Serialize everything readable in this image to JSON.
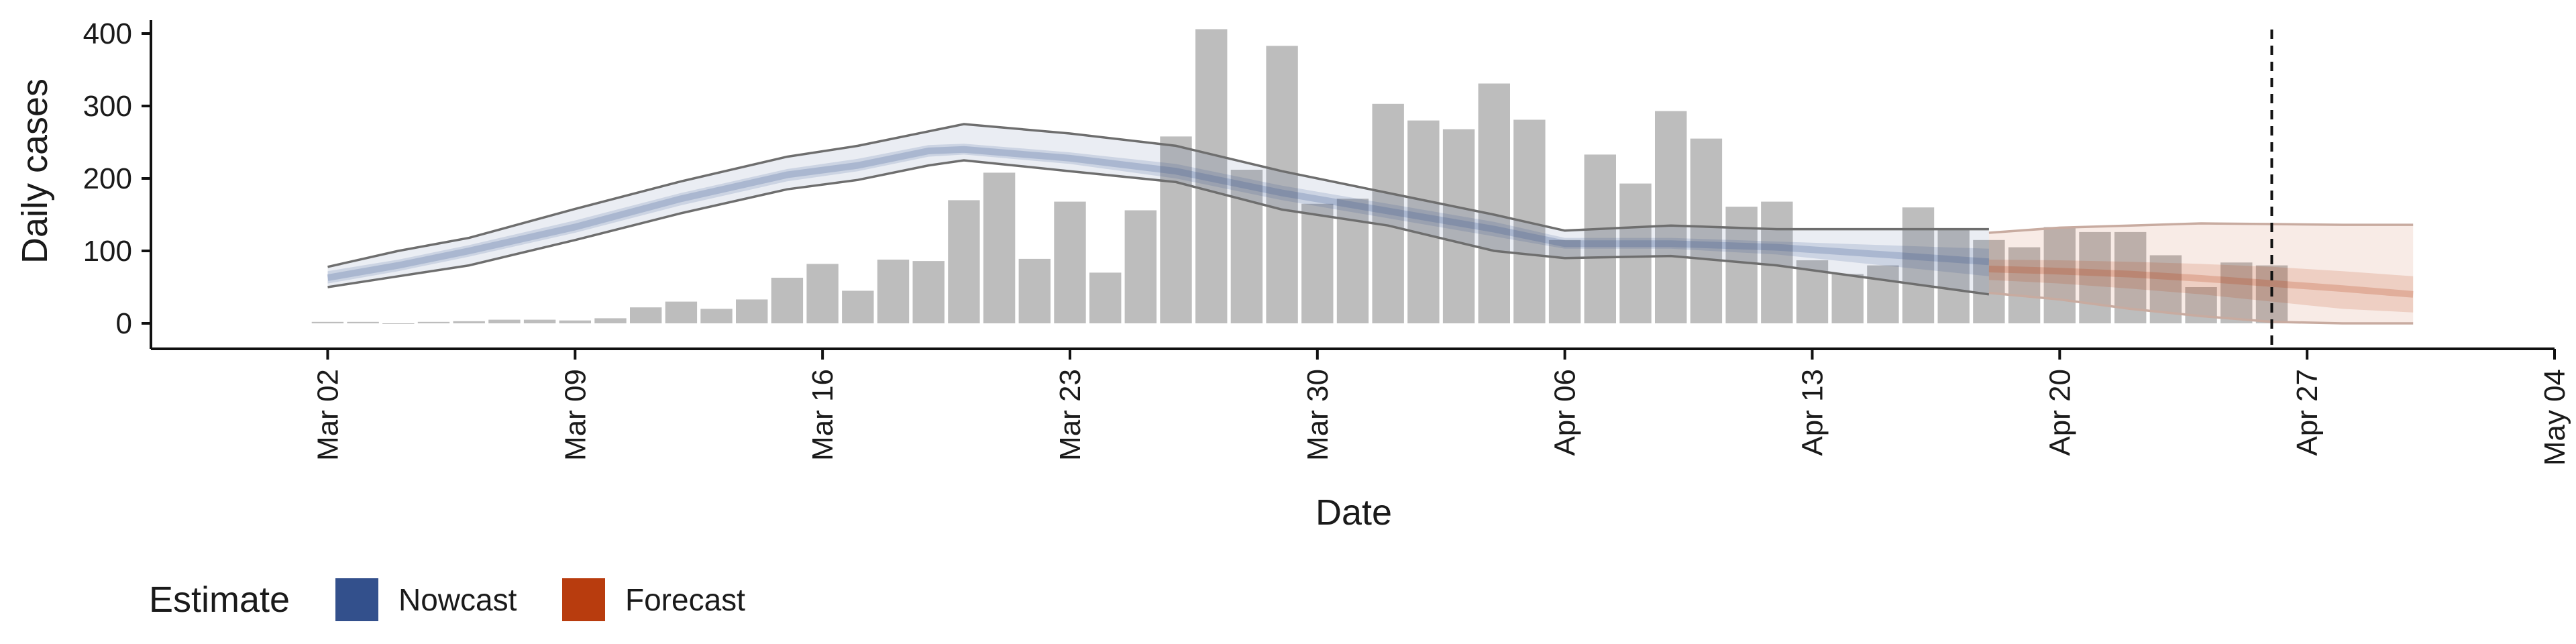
{
  "chart_data": {
    "type": "bar",
    "xlabel": "Date",
    "ylabel": "Daily cases",
    "ylim": [
      0,
      420
    ],
    "y_ticks": [
      0,
      100,
      200,
      300,
      400
    ],
    "x_range": [
      "2020-02-26",
      "2020-05-04"
    ],
    "x_ticks": [
      {
        "date": "2020-03-02",
        "label": "Mar 02"
      },
      {
        "date": "2020-03-09",
        "label": "Mar 09"
      },
      {
        "date": "2020-03-16",
        "label": "Mar 16"
      },
      {
        "date": "2020-03-23",
        "label": "Mar 23"
      },
      {
        "date": "2020-03-30",
        "label": "Mar 30"
      },
      {
        "date": "2020-04-06",
        "label": "Apr 06"
      },
      {
        "date": "2020-04-13",
        "label": "Apr 13"
      },
      {
        "date": "2020-04-20",
        "label": "Apr 20"
      },
      {
        "date": "2020-04-27",
        "label": "Apr 27"
      },
      {
        "date": "2020-05-04",
        "label": "May 04"
      }
    ],
    "grid": false,
    "reference_line_date": "2020-04-26",
    "bars": {
      "color": "#bdbdbd",
      "dates": [
        "2020-03-02",
        "2020-03-03",
        "2020-03-04",
        "2020-03-05",
        "2020-03-06",
        "2020-03-07",
        "2020-03-08",
        "2020-03-09",
        "2020-03-10",
        "2020-03-11",
        "2020-03-12",
        "2020-03-13",
        "2020-03-14",
        "2020-03-15",
        "2020-03-16",
        "2020-03-17",
        "2020-03-18",
        "2020-03-19",
        "2020-03-20",
        "2020-03-21",
        "2020-03-22",
        "2020-03-23",
        "2020-03-24",
        "2020-03-25",
        "2020-03-26",
        "2020-03-27",
        "2020-03-28",
        "2020-03-29",
        "2020-03-30",
        "2020-03-31",
        "2020-04-01",
        "2020-04-02",
        "2020-04-03",
        "2020-04-04",
        "2020-04-05",
        "2020-04-06",
        "2020-04-07",
        "2020-04-08",
        "2020-04-09",
        "2020-04-10",
        "2020-04-11",
        "2020-04-12",
        "2020-04-13",
        "2020-04-14",
        "2020-04-15",
        "2020-04-16",
        "2020-04-17",
        "2020-04-18",
        "2020-04-19",
        "2020-04-20",
        "2020-04-21",
        "2020-04-22",
        "2020-04-23",
        "2020-04-24",
        "2020-04-25",
        "2020-04-26"
      ],
      "values": [
        2,
        2,
        0,
        2,
        3,
        5,
        5,
        4,
        7,
        22,
        30,
        20,
        33,
        63,
        82,
        45,
        88,
        86,
        170,
        208,
        89,
        168,
        70,
        156,
        258,
        406,
        212,
        383,
        165,
        172,
        303,
        280,
        268,
        331,
        281,
        115,
        233,
        193,
        293,
        255,
        161,
        168,
        87,
        68,
        80,
        160,
        130,
        115,
        105,
        133,
        126,
        126,
        94,
        50,
        84,
        80
      ]
    },
    "series": [
      {
        "name": "Nowcast",
        "color": "#33508c",
        "dates": [
          "2020-03-02",
          "2020-03-04",
          "2020-03-06",
          "2020-03-09",
          "2020-03-12",
          "2020-03-15",
          "2020-03-17",
          "2020-03-19",
          "2020-03-20",
          "2020-03-23",
          "2020-03-26",
          "2020-03-29",
          "2020-04-01",
          "2020-04-04",
          "2020-04-06",
          "2020-04-09",
          "2020-04-12",
          "2020-04-15",
          "2020-04-18"
        ],
        "median": [
          63,
          80,
          100,
          133,
          172,
          205,
          218,
          238,
          240,
          228,
          210,
          180,
          155,
          130,
          110,
          110,
          105,
          95,
          85
        ],
        "inner_low": [
          55,
          72,
          92,
          125,
          163,
          196,
          210,
          230,
          233,
          220,
          200,
          170,
          145,
          120,
          103,
          103,
          95,
          80,
          65
        ],
        "inner_high": [
          72,
          88,
          108,
          142,
          180,
          213,
          227,
          246,
          248,
          236,
          220,
          190,
          165,
          140,
          118,
          118,
          113,
          108,
          103
        ],
        "outer_low": [
          50,
          65,
          80,
          115,
          152,
          185,
          198,
          218,
          225,
          210,
          195,
          157,
          135,
          100,
          90,
          93,
          80,
          60,
          40
        ],
        "outer_high": [
          78,
          100,
          118,
          158,
          196,
          230,
          245,
          265,
          275,
          262,
          245,
          210,
          180,
          150,
          128,
          135,
          130,
          130,
          130
        ]
      },
      {
        "name": "Forecast",
        "color": "#b83c0e",
        "dates": [
          "2020-04-18",
          "2020-04-20",
          "2020-04-22",
          "2020-04-24",
          "2020-04-26",
          "2020-04-28",
          "2020-04-30"
        ],
        "median": [
          75,
          72,
          68,
          62,
          55,
          48,
          40
        ],
        "inner_low": [
          60,
          55,
          48,
          40,
          30,
          20,
          15
        ],
        "inner_high": [
          88,
          87,
          85,
          82,
          78,
          72,
          65
        ],
        "outer_low": [
          42,
          33,
          20,
          10,
          2,
          0,
          0
        ],
        "outer_high": [
          125,
          132,
          135,
          138,
          137,
          136,
          136
        ]
      }
    ],
    "legend": {
      "title": "Estimate",
      "position": "bottom-left",
      "entries": [
        "Nowcast",
        "Forecast"
      ]
    }
  }
}
